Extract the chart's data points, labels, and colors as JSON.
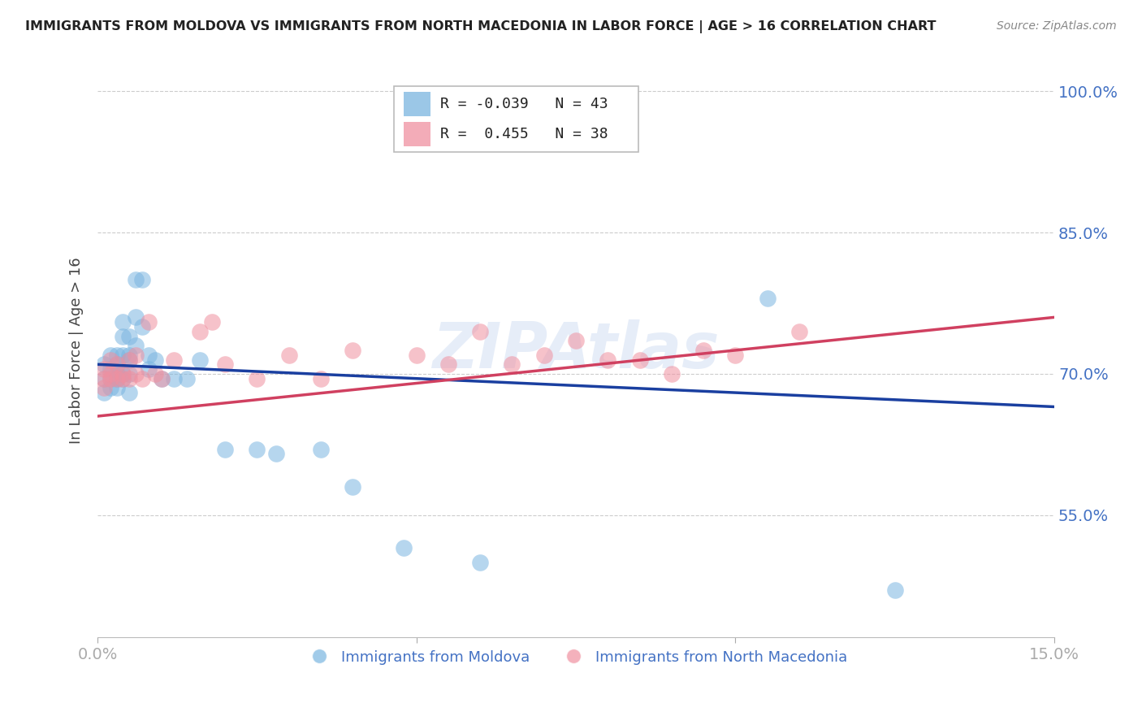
{
  "title": "IMMIGRANTS FROM MOLDOVA VS IMMIGRANTS FROM NORTH MACEDONIA IN LABOR FORCE | AGE > 16 CORRELATION CHART",
  "source": "Source: ZipAtlas.com",
  "ylabel": "In Labor Force | Age > 16",
  "xlim": [
    0.0,
    0.15
  ],
  "ylim": [
    0.42,
    1.03
  ],
  "ytick_vals": [
    0.55,
    0.7,
    0.85,
    1.0
  ],
  "ytick_labels": [
    "55.0%",
    "70.0%",
    "85.0%",
    "100.0%"
  ],
  "blue_R": -0.039,
  "blue_N": 43,
  "pink_R": 0.455,
  "pink_N": 38,
  "blue_color": "#7ab5e0",
  "pink_color": "#f090a0",
  "blue_line_color": "#1a3fa0",
  "pink_line_color": "#d04060",
  "legend_label_blue": "Immigrants from Moldova",
  "legend_label_pink": "Immigrants from North Macedonia",
  "blue_scatter_x": [
    0.001,
    0.001,
    0.001,
    0.002,
    0.002,
    0.002,
    0.002,
    0.003,
    0.003,
    0.003,
    0.003,
    0.003,
    0.004,
    0.004,
    0.004,
    0.004,
    0.004,
    0.005,
    0.005,
    0.005,
    0.005,
    0.005,
    0.006,
    0.006,
    0.006,
    0.007,
    0.007,
    0.008,
    0.008,
    0.009,
    0.01,
    0.012,
    0.014,
    0.016,
    0.02,
    0.025,
    0.028,
    0.035,
    0.04,
    0.048,
    0.06,
    0.105,
    0.125
  ],
  "blue_scatter_y": [
    0.695,
    0.71,
    0.68,
    0.72,
    0.695,
    0.705,
    0.685,
    0.72,
    0.7,
    0.71,
    0.695,
    0.685,
    0.755,
    0.74,
    0.72,
    0.7,
    0.695,
    0.74,
    0.72,
    0.715,
    0.7,
    0.68,
    0.8,
    0.76,
    0.73,
    0.8,
    0.75,
    0.72,
    0.705,
    0.715,
    0.695,
    0.695,
    0.695,
    0.715,
    0.62,
    0.62,
    0.615,
    0.62,
    0.58,
    0.515,
    0.5,
    0.78,
    0.47
  ],
  "pink_scatter_x": [
    0.001,
    0.001,
    0.001,
    0.002,
    0.002,
    0.002,
    0.003,
    0.003,
    0.004,
    0.004,
    0.005,
    0.005,
    0.006,
    0.006,
    0.007,
    0.008,
    0.009,
    0.01,
    0.012,
    0.016,
    0.018,
    0.02,
    0.025,
    0.03,
    0.035,
    0.04,
    0.05,
    0.055,
    0.06,
    0.065,
    0.07,
    0.075,
    0.08,
    0.085,
    0.09,
    0.095,
    0.1,
    0.11
  ],
  "pink_scatter_y": [
    0.695,
    0.705,
    0.685,
    0.715,
    0.695,
    0.7,
    0.71,
    0.695,
    0.7,
    0.695,
    0.715,
    0.695,
    0.72,
    0.7,
    0.695,
    0.755,
    0.7,
    0.695,
    0.715,
    0.745,
    0.755,
    0.71,
    0.695,
    0.72,
    0.695,
    0.725,
    0.72,
    0.71,
    0.745,
    0.71,
    0.72,
    0.735,
    0.715,
    0.715,
    0.7,
    0.725,
    0.72,
    0.745
  ],
  "blue_line_x": [
    0.0,
    0.15
  ],
  "blue_line_y": [
    0.71,
    0.665
  ],
  "pink_line_x": [
    0.0,
    0.15
  ],
  "pink_line_y": [
    0.655,
    0.76
  ]
}
